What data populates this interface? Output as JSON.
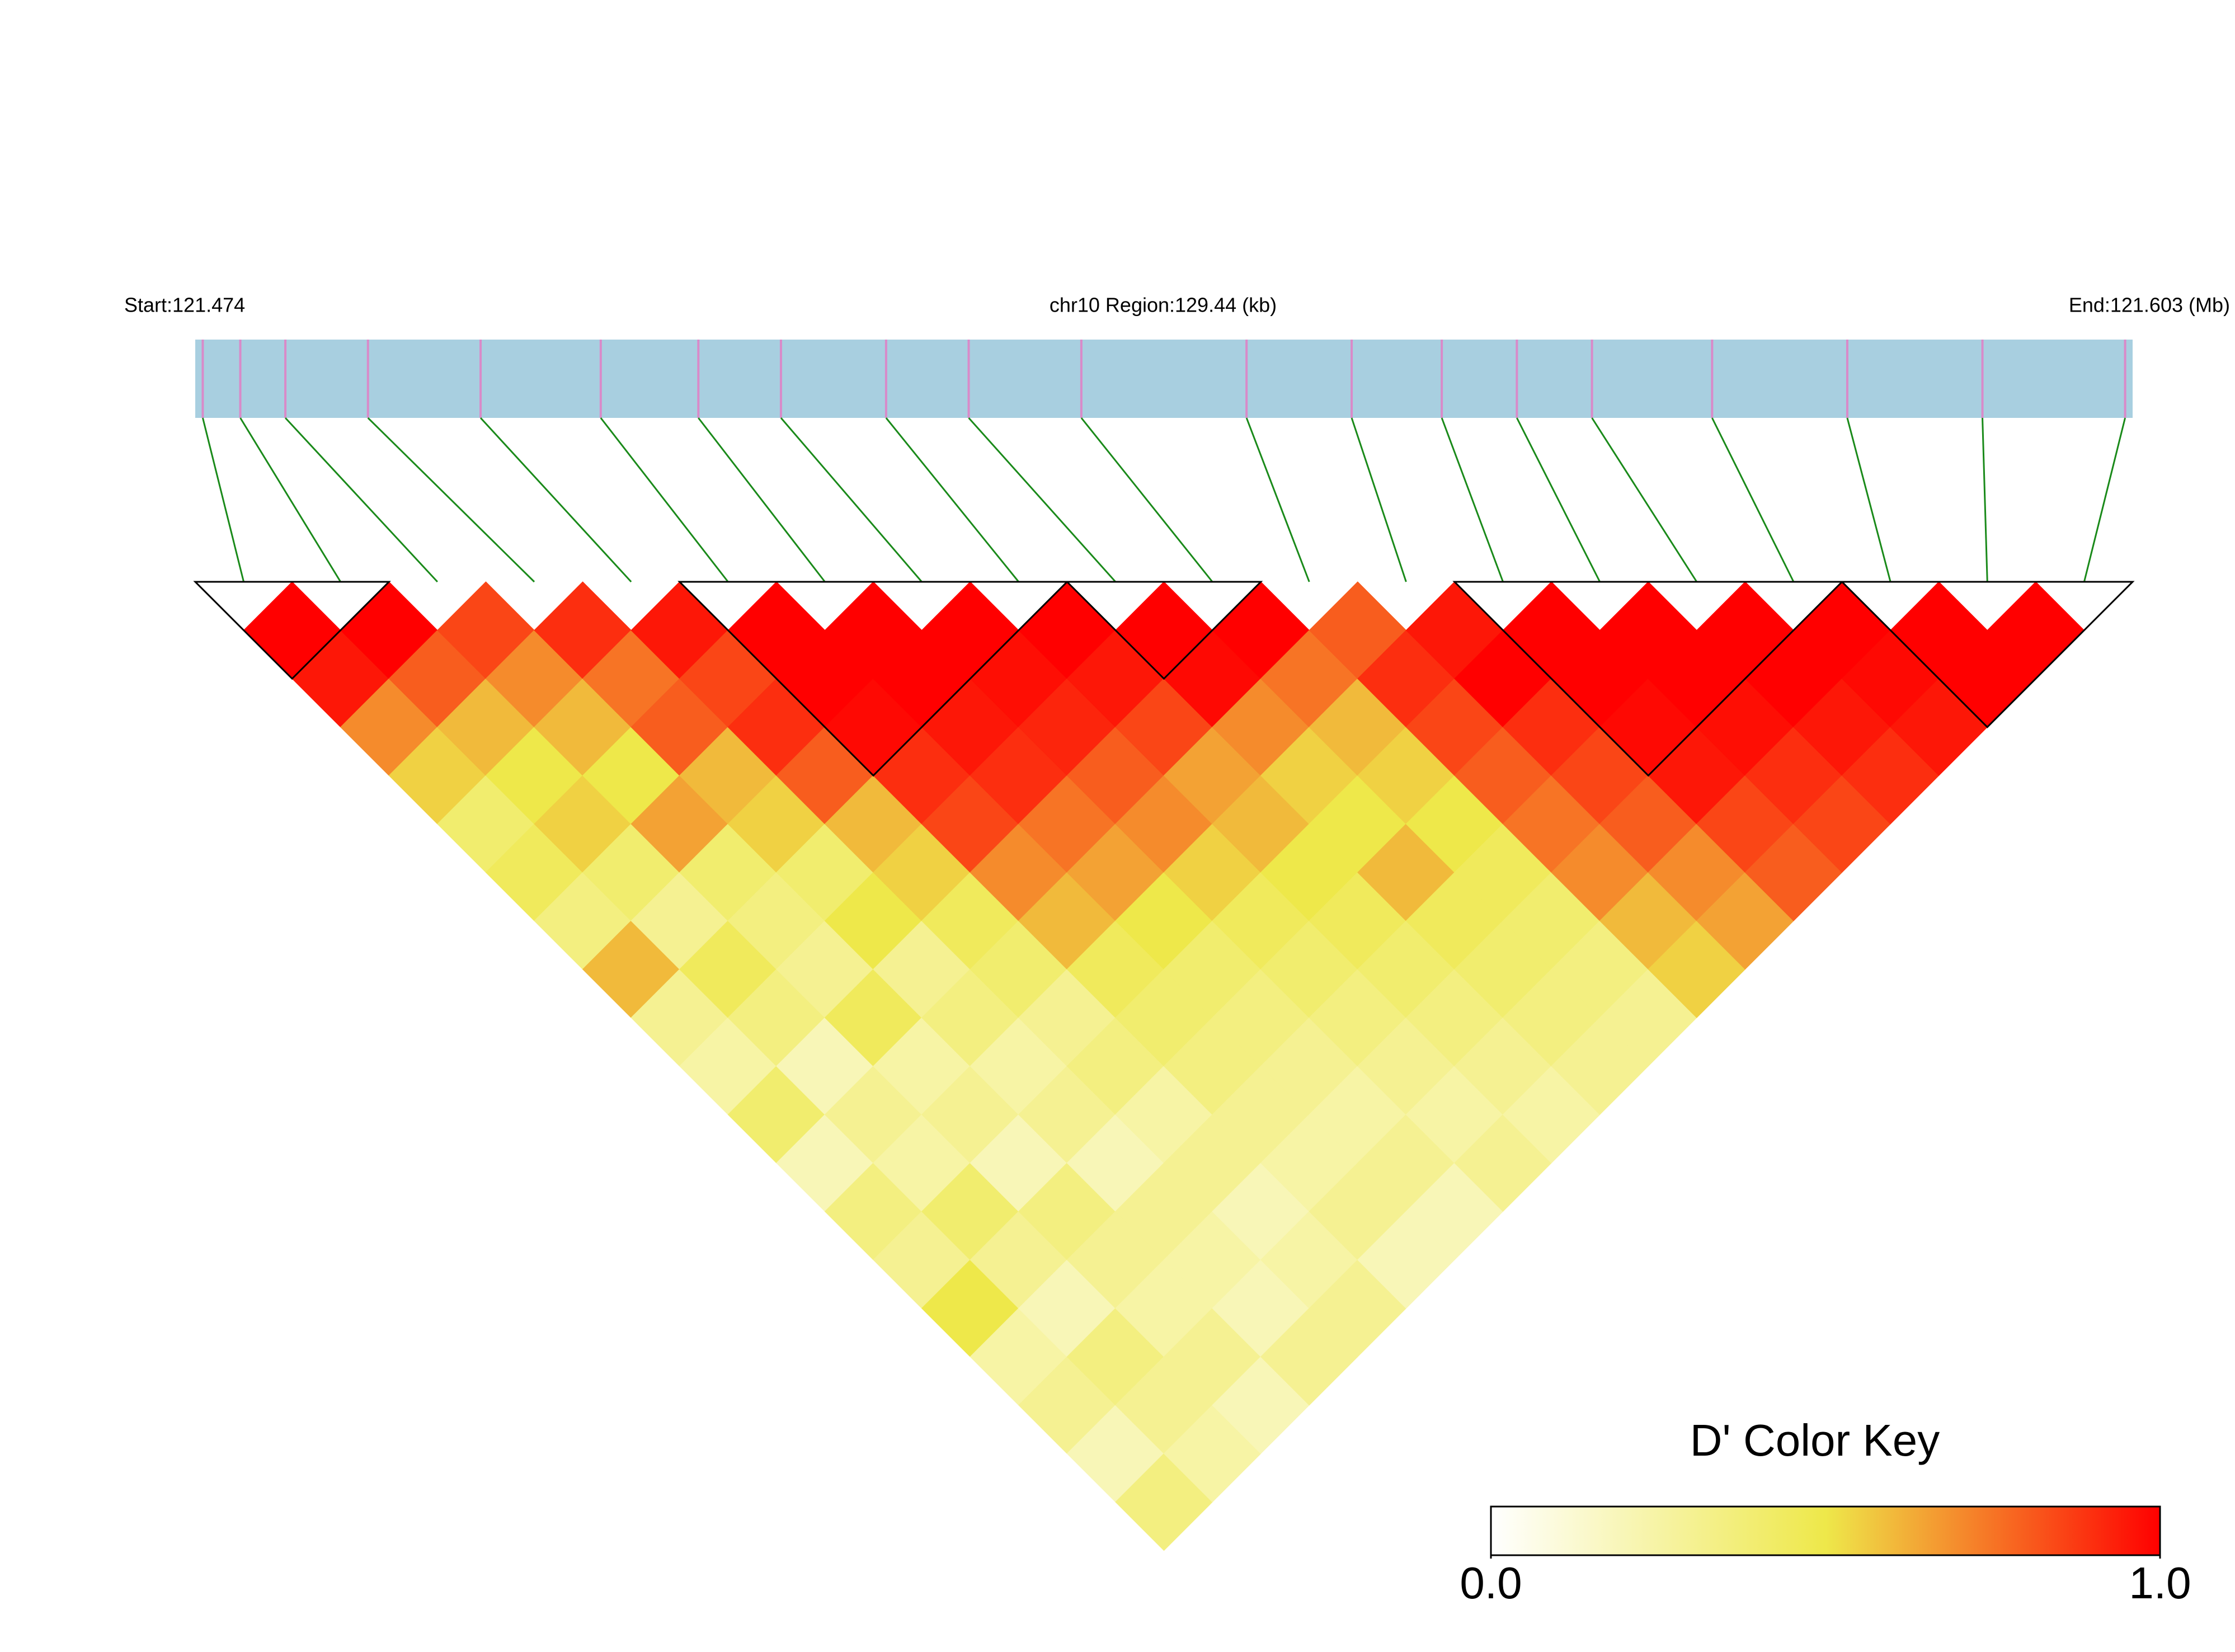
{
  "chart_data": {
    "type": "heatmap",
    "start_label": "Start:121.474",
    "region_label": "chr10 Region:129.44 (kb)",
    "end_label": "End:121.603 (Mb)",
    "xlim": [
      121.474,
      121.603
    ],
    "snp_positions": [
      121.4745,
      121.477,
      121.48,
      121.4855,
      121.493,
      121.501,
      121.5075,
      121.513,
      121.52,
      121.5255,
      121.533,
      121.544,
      121.551,
      121.557,
      121.562,
      121.567,
      121.575,
      121.584,
      121.593,
      121.6025
    ],
    "values": [
      [
        1,
        0.95,
        0.7,
        0.55,
        0.4,
        0.45,
        0.35,
        0.6,
        0.3,
        0.25,
        0.4,
        0.2,
        0.35,
        0.3,
        0.5,
        0.25,
        0.3,
        0.2,
        0.35
      ],
      [
        1,
        0.8,
        0.6,
        0.5,
        0.55,
        0.4,
        0.3,
        0.45,
        0.35,
        0.2,
        0.3,
        0.25,
        0.4,
        0.3,
        0.2,
        0.35,
        0.3,
        0.25
      ],
      [
        0.85,
        0.7,
        0.6,
        0.5,
        0.65,
        0.4,
        0.35,
        0.3,
        0.45,
        0.25,
        0.3,
        0.2,
        0.35,
        0.3,
        0.25,
        0.3,
        0.2
      ],
      [
        0.9,
        0.75,
        0.8,
        0.6,
        0.55,
        0.4,
        0.5,
        0.3,
        0.35,
        0.25,
        0.3,
        0.2,
        0.3,
        0.25,
        0.2,
        0.3
      ],
      [
        0.95,
        0.85,
        0.9,
        0.8,
        0.6,
        0.55,
        0.45,
        0.4,
        0.3,
        0.35,
        0.25,
        0.3,
        0.2,
        0.25,
        0.3
      ],
      [
        1,
        1,
        0.98,
        0.9,
        0.85,
        0.7,
        0.6,
        0.45,
        0.4,
        0.35,
        0.3,
        0.25,
        0.3,
        0.2
      ],
      [
        1,
        1,
        0.95,
        0.9,
        0.75,
        0.65,
        0.5,
        0.4,
        0.35,
        0.3,
        0.25,
        0.3,
        0.2
      ],
      [
        1,
        0.97,
        0.92,
        0.8,
        0.7,
        0.55,
        0.45,
        0.4,
        0.35,
        0.3,
        0.25,
        0.3
      ],
      [
        1,
        0.95,
        0.85,
        0.65,
        0.6,
        0.5,
        0.45,
        0.4,
        0.35,
        0.3,
        0.25
      ],
      [
        1,
        0.98,
        0.7,
        0.55,
        0.5,
        0.6,
        0.45,
        0.4,
        0.35,
        0.3
      ],
      [
        1,
        0.75,
        0.6,
        0.55,
        0.5,
        0.45,
        0.4,
        0.35,
        0.3
      ],
      [
        0.8,
        0.9,
        0.85,
        0.8,
        0.75,
        0.7,
        0.6,
        0.55
      ],
      [
        0.95,
        1,
        0.9,
        0.85,
        0.8,
        0.7,
        0.65
      ],
      [
        1,
        1,
        0.98,
        0.95,
        0.85,
        0.8
      ],
      [
        1,
        1,
        0.97,
        0.9,
        0.85
      ],
      [
        1,
        1,
        0.95,
        0.9
      ],
      [
        1,
        0.98,
        0.95
      ],
      [
        1,
        1
      ],
      [
        1
      ]
    ],
    "blocks": [
      [
        0,
        1
      ],
      [
        5,
        8
      ],
      [
        9,
        10
      ],
      [
        13,
        16
      ],
      [
        17,
        19
      ]
    ],
    "clim": [
      0,
      1
    ],
    "colorscale": [
      "#ffffff",
      "#eee84a",
      "#ff0000"
    ],
    "track_color": "#a8cfe0",
    "snp_color": "#d98ac9",
    "link_color": "#1a8a1a",
    "colorkey_title": "D' Color Key",
    "colorkey_ticks": [
      {
        "value": 0,
        "label": "0.0"
      },
      {
        "value": 1,
        "label": "1.0"
      }
    ]
  }
}
